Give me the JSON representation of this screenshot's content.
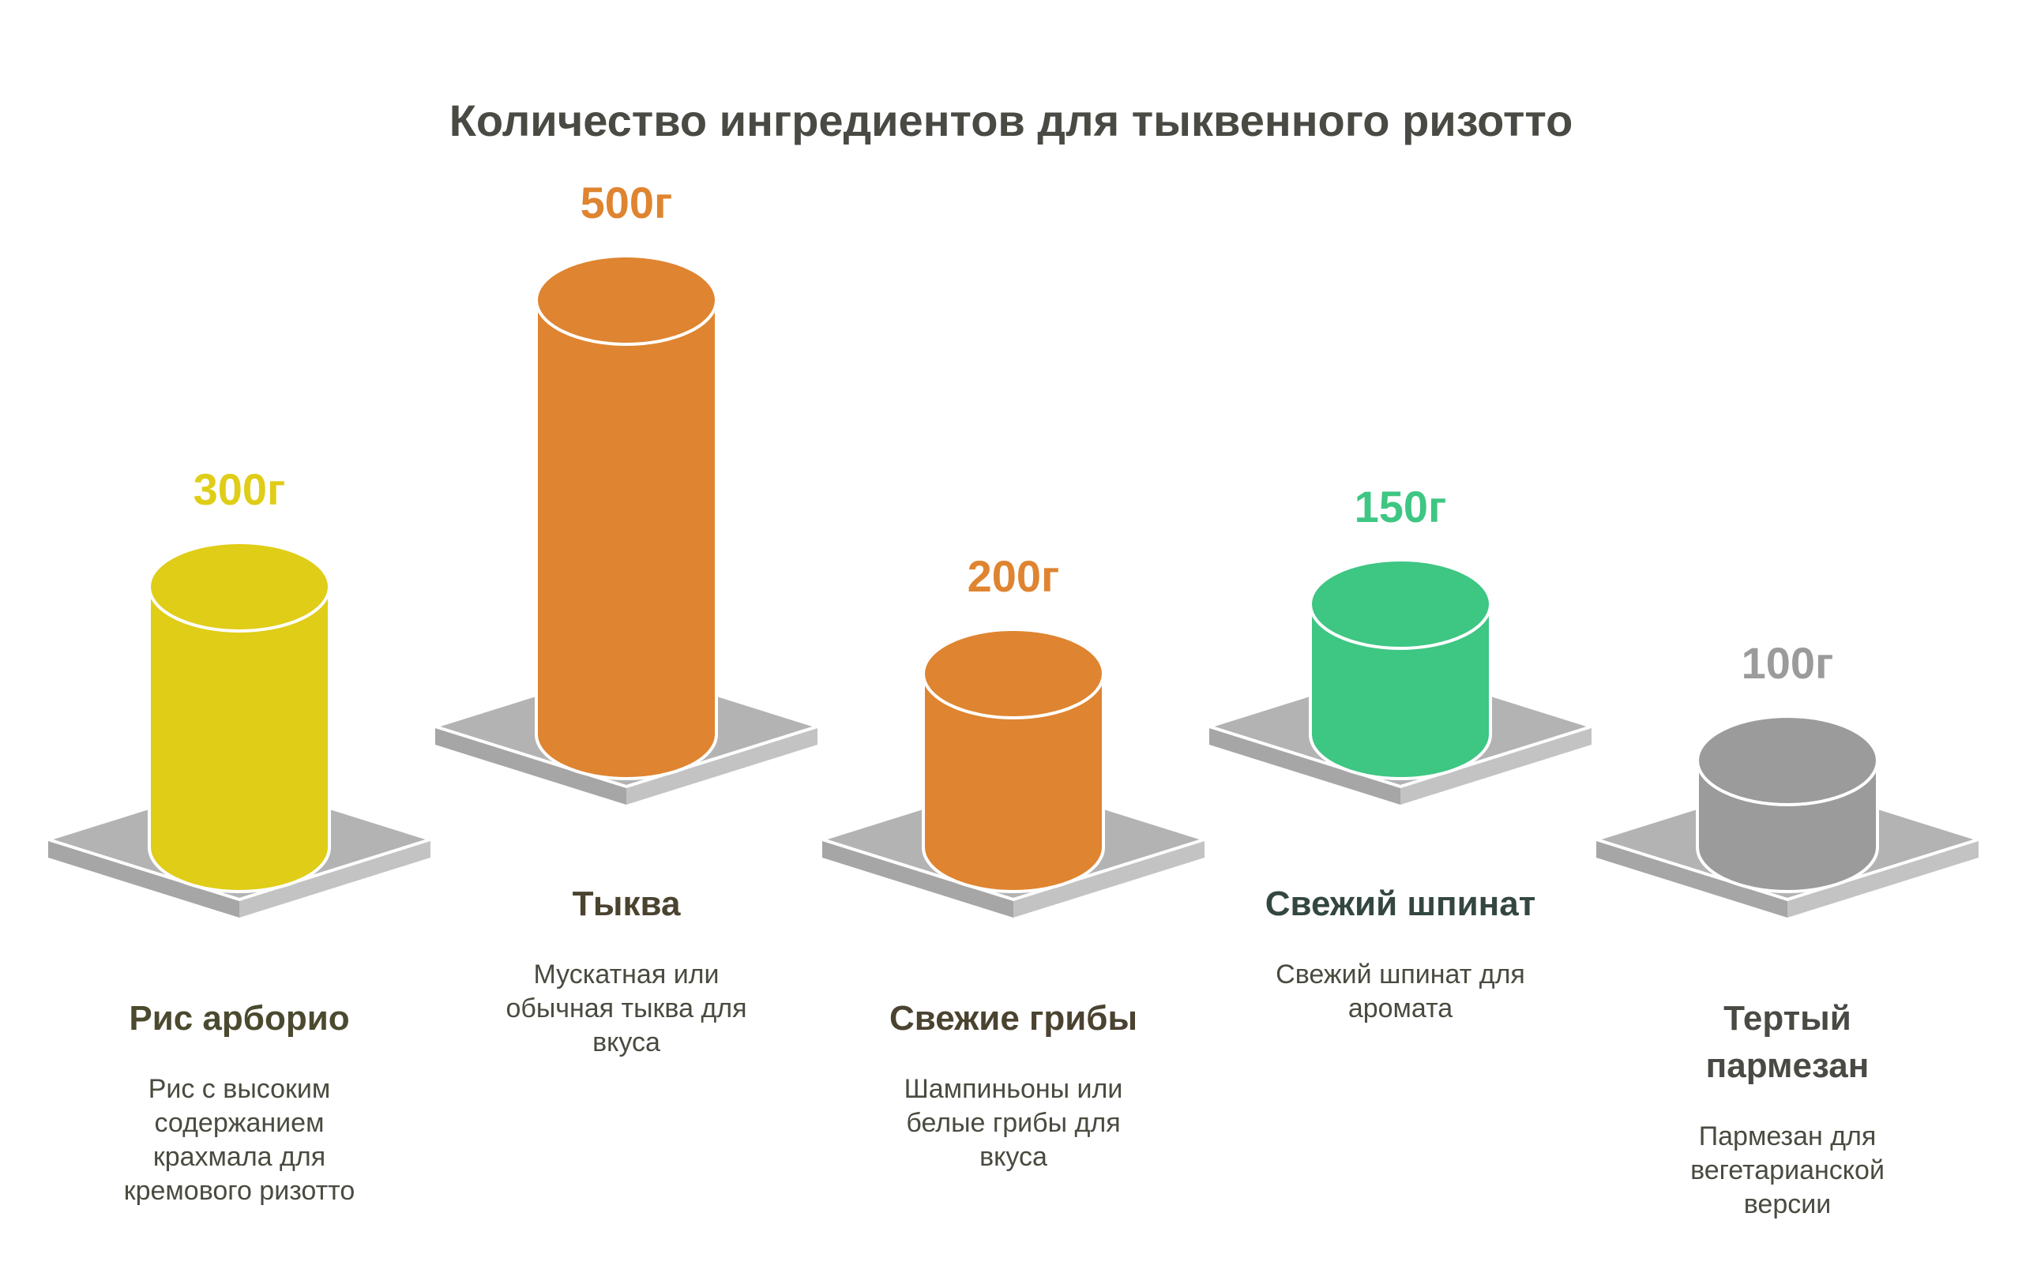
{
  "chart_data": {
    "type": "bar",
    "title": "Количество ингредиентов для тыквенного ризотто",
    "unit": "г",
    "categories": [
      "Рис арборио",
      "Тыква",
      "Свежие грибы",
      "Свежий шпинат",
      "Тертый пармезан"
    ],
    "values": [
      300,
      500,
      200,
      150,
      100
    ],
    "value_labels": [
      "300г",
      "500г",
      "200г",
      "150г",
      "100г"
    ],
    "descriptions": [
      "Рис с высоким содержанием крахмала для кремового ризотто",
      "Мускатная или обычная тыква для вкуса",
      "Шампиньоны или белые грибы для вкуса",
      "Свежий шпинат для аромата",
      "Пармезан для вегетарианской версии"
    ],
    "colors": [
      "#dfcd17",
      "#df8430",
      "#df8430",
      "#3ec683",
      "#9b9b9b"
    ],
    "legend": "none",
    "grid": false
  }
}
